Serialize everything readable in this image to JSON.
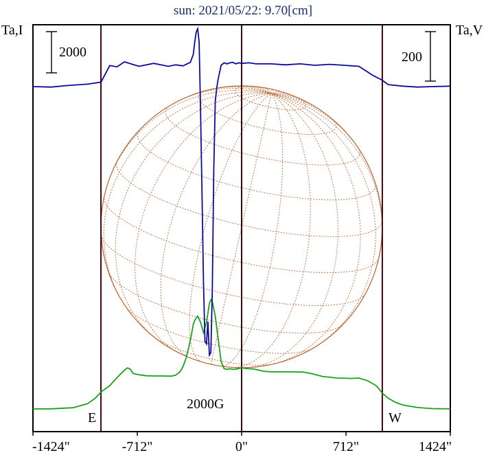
{
  "chart_data": {
    "type": "line",
    "title": "sun: 2021/05/22: 9.70[cm]",
    "left_axis_label": "Ta,I",
    "right_axis_label": "Ta,V",
    "left_scale_bar_label": "2000",
    "right_scale_bar_label": "200",
    "x_ticks": [
      -1424,
      -712,
      0,
      712,
      1424
    ],
    "x_tick_labels": [
      "-1424\"",
      "-712\"",
      "0\"",
      "712\"",
      "1424\""
    ],
    "xlim": [
      -1424,
      1424
    ],
    "solar_limb_markers": [
      -960,
      960
    ],
    "limb_labels": {
      "east": "E",
      "west": "W"
    },
    "annotation": "2000G",
    "colors": {
      "stokes_i": "#1aa01a",
      "stokes_v": "#0a0a9a",
      "disk_grid": "#b86a3a",
      "limb_lines": "#3a0a0a"
    },
    "series": [
      {
        "key": "I",
        "color": "#1aa01a",
        "x": [
          -1424,
          -1300,
          -1150,
          -1050,
          -1000,
          -960,
          -900,
          -850,
          -800,
          -780,
          -760,
          -740,
          -700,
          -650,
          -600,
          -550,
          -480,
          -450,
          -420,
          -400,
          -380,
          -360,
          -340,
          -330,
          -320,
          -300,
          -280,
          -260,
          -240,
          -220,
          -210,
          -200,
          -180,
          -160,
          -140,
          -120,
          -100,
          -80,
          -60,
          -40,
          -20,
          0,
          30,
          80,
          150,
          200,
          300,
          420,
          480,
          550,
          650,
          750,
          800,
          860,
          920,
          960,
          1000,
          1050,
          1100,
          1200,
          1300,
          1424
        ],
        "y": [
          0,
          8,
          60,
          260,
          510,
          820,
          1130,
          1520,
          1880,
          1990,
          1930,
          1720,
          1660,
          1610,
          1600,
          1600,
          1590,
          1640,
          1800,
          2050,
          2450,
          3000,
          3700,
          4100,
          4300,
          4500,
          4200,
          3700,
          4200,
          5100,
          5300,
          5200,
          4500,
          3400,
          2300,
          1960,
          1920,
          1950,
          1920,
          1930,
          1960,
          2000,
          1960,
          1940,
          1830,
          1800,
          1800,
          1790,
          1710,
          1580,
          1500,
          1480,
          1500,
          1370,
          1120,
          770,
          520,
          320,
          190,
          70,
          15,
          5
        ]
      },
      {
        "key": "V",
        "color": "#0a0a9a",
        "x": [
          -1424,
          -1300,
          -1200,
          -1050,
          -960,
          -900,
          -850,
          -800,
          -700,
          -600,
          -500,
          -450,
          -400,
          -350,
          -330,
          -320,
          -310,
          -300,
          -290,
          -280,
          -270,
          -260,
          -250,
          -240,
          -230,
          -220,
          -210,
          -200,
          -190,
          -180,
          -170,
          -160,
          -140,
          -120,
          -100,
          -80,
          -60,
          -40,
          -20,
          0,
          50,
          100,
          200,
          300,
          400,
          500,
          600,
          700,
          800,
          900,
          960,
          1000,
          1100,
          1200,
          1300,
          1424
        ],
        "y": [
          0,
          -2,
          4,
          10,
          18,
          85,
          80,
          100,
          82,
          94,
          82,
          88,
          84,
          98,
          130,
          180,
          220,
          234,
          180,
          -100,
          -450,
          -800,
          -1030,
          -1040,
          -950,
          -1085,
          -1075,
          -820,
          -340,
          -60,
          -6,
          30,
          86,
          96,
          92,
          96,
          98,
          92,
          96,
          94,
          96,
          92,
          92,
          88,
          92,
          86,
          90,
          86,
          82,
          44,
          26,
          8,
          2,
          -2,
          0,
          2
        ]
      }
    ]
  }
}
